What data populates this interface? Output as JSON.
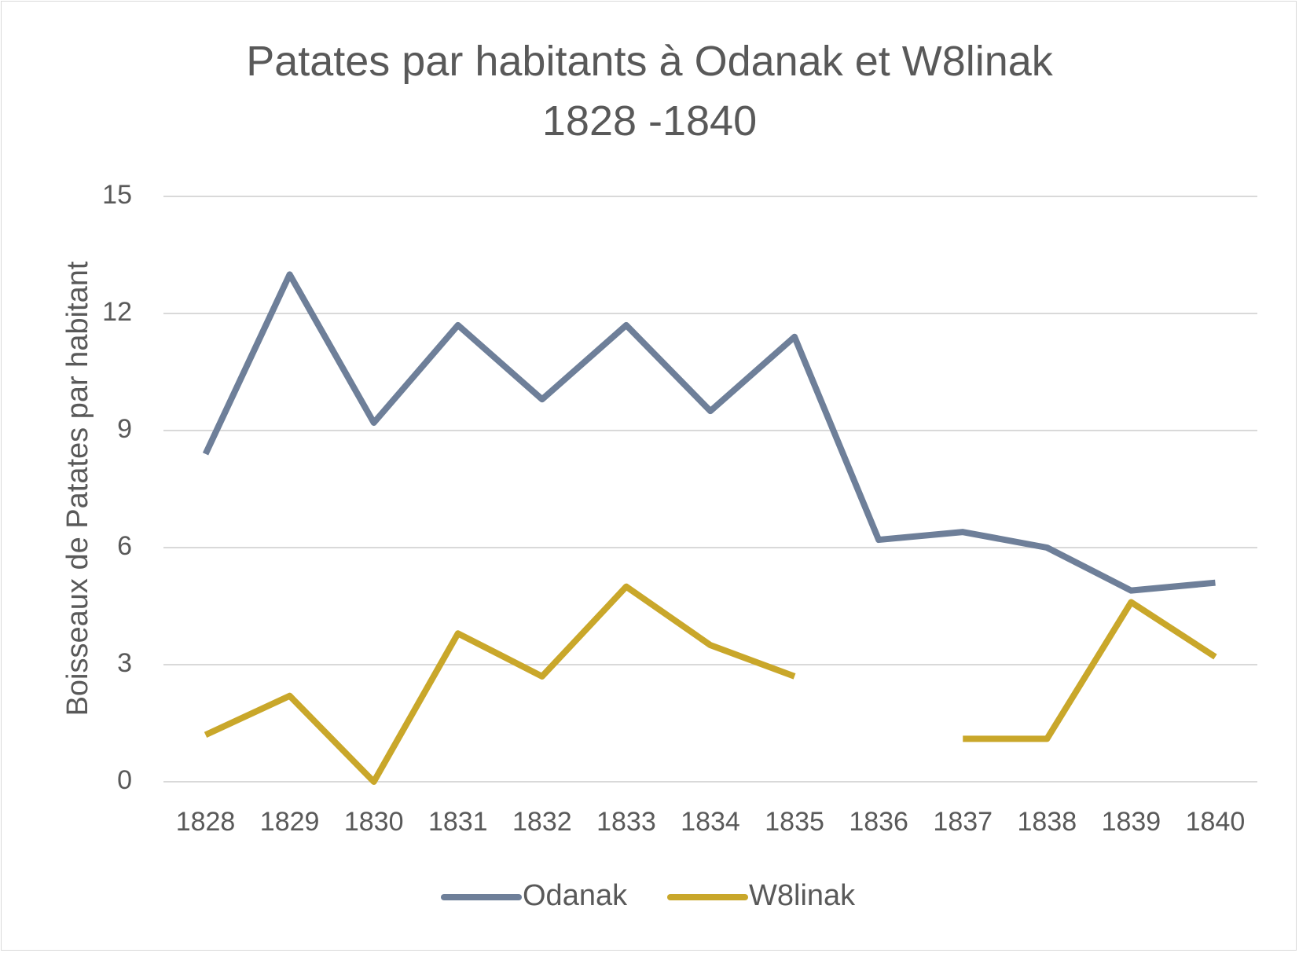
{
  "chart_data": {
    "type": "line",
    "title": "Patates par habitants à Odanak et W8linak",
    "subtitle": "1828 -1840",
    "xlabel": "",
    "ylabel": "Boisseaux de Patates par habitant",
    "categories": [
      "1828",
      "1829",
      "1830",
      "1831",
      "1832",
      "1833",
      "1834",
      "1835",
      "1836",
      "1837",
      "1838",
      "1839",
      "1840"
    ],
    "yticks": [
      "0",
      "3",
      "6",
      "9",
      "12",
      "15"
    ],
    "ylim": [
      0,
      15
    ],
    "grid": true,
    "legend_position": "bottom",
    "series": [
      {
        "name": "Odanak",
        "color": "#6e7f99",
        "values": [
          8.4,
          13.0,
          9.2,
          11.7,
          9.8,
          11.7,
          9.5,
          11.4,
          6.2,
          6.4,
          6.0,
          4.9,
          5.1
        ]
      },
      {
        "name": "W8linak",
        "color": "#c9a72a",
        "values": [
          1.2,
          2.2,
          0.0,
          3.8,
          2.7,
          5.0,
          3.5,
          2.7,
          null,
          1.1,
          1.1,
          4.6,
          3.2
        ]
      }
    ]
  }
}
